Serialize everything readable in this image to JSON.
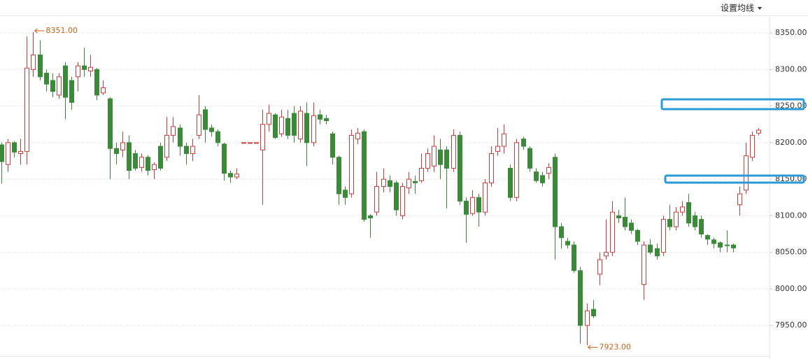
{
  "header": {
    "menu": "设置均线"
  },
  "chart_data": {
    "type": "candlestick",
    "ylim": [
      7909,
      8374
    ],
    "yticks": [
      {
        "value": 7950,
        "label": "7950.00"
      },
      {
        "value": 8000,
        "label": "8000.00"
      },
      {
        "value": 8050,
        "label": "8050.00"
      },
      {
        "value": 8100,
        "label": "8100.00"
      },
      {
        "value": 8150,
        "label": "8150.00"
      },
      {
        "value": 8200,
        "label": "8200.00"
      },
      {
        "value": 8250,
        "label": "8250.00"
      },
      {
        "value": 8300,
        "label": "8300.00"
      },
      {
        "value": 8350,
        "label": "8350.00"
      }
    ],
    "grid": true,
    "up_color": "#c83c3c",
    "down_color": "#3a8a3a",
    "max_label": "8351.00",
    "min_label": "7923.00",
    "open": [
      8197,
      8170,
      8200,
      8185,
      8188,
      8300,
      8320,
      8295,
      8285,
      8265,
      8305,
      8285,
      8290,
      8305,
      8298,
      8300,
      8268,
      8260,
      8192,
      8190,
      8200,
      8185,
      8166,
      8180,
      8163,
      8195,
      8180,
      8210,
      8220,
      8195,
      8185,
      8210,
      8245,
      8220,
      8215,
      8198,
      8158,
      8153,
      8200,
      8200,
      8200,
      8190,
      8225,
      8238,
      8212,
      8233,
      8240,
      8205,
      8240,
      8200,
      8238,
      8233,
      8212,
      8180,
      8135,
      8130,
      8205,
      8215,
      8100,
      8105,
      8140,
      8148,
      8145,
      8100,
      8138,
      8147,
      8148,
      8165,
      8168,
      8190,
      8190,
      8165,
      8210,
      8120,
      8103,
      8125,
      8105,
      8145,
      8188,
      8195,
      8165,
      8125,
      8205,
      8192,
      8160,
      8155,
      8158,
      8180,
      8085,
      8065,
      8060,
      8025,
      7950,
      7972,
      8020,
      8045,
      8050,
      8100,
      8098,
      8090,
      8080,
      8006,
      8060,
      8055,
      8050,
      8095,
      8085,
      8105,
      8118,
      8100,
      8095,
      8073,
      8067,
      8063,
      8060,
      8060,
      8115,
      8135,
      8180,
      8213
    ],
    "high": [
      8200,
      8205,
      8202,
      8205,
      8345,
      8351,
      8340,
      8300,
      8295,
      8295,
      8310,
      8290,
      8310,
      8330,
      8320,
      8302,
      8285,
      8262,
      8200,
      8215,
      8210,
      8190,
      8185,
      8183,
      8173,
      8200,
      8235,
      8235,
      8225,
      8200,
      8205,
      8265,
      8250,
      8225,
      8218,
      8200,
      8162,
      8165,
      8200,
      8200,
      8200,
      8245,
      8252,
      8240,
      8245,
      8245,
      8250,
      8250,
      8255,
      8255,
      8245,
      8238,
      8215,
      8182,
      8140,
      8218,
      8220,
      8218,
      8102,
      8160,
      8165,
      8155,
      8148,
      8145,
      8160,
      8155,
      8185,
      8192,
      8210,
      8205,
      8195,
      8218,
      8215,
      8125,
      8135,
      8130,
      8150,
      8195,
      8220,
      8225,
      8170,
      8205,
      8208,
      8195,
      8165,
      8160,
      8172,
      8185,
      8090,
      8070,
      8065,
      8030,
      7980,
      7985,
      8050,
      8095,
      8120,
      8108,
      8125,
      8095,
      8082,
      8065,
      8068,
      8062,
      8100,
      8115,
      8112,
      8120,
      8130,
      8105,
      8100,
      8075,
      8070,
      8065,
      8080,
      8062,
      8140,
      8200,
      8215,
      8220
    ],
    "low": [
      8144,
      8160,
      8180,
      8170,
      8170,
      8290,
      8285,
      8270,
      8262,
      8260,
      8232,
      8245,
      8270,
      8290,
      8290,
      8258,
      8265,
      8150,
      8170,
      8180,
      8150,
      8162,
      8160,
      8155,
      8150,
      8162,
      8175,
      8200,
      8182,
      8170,
      8175,
      8205,
      8200,
      8208,
      8195,
      8148,
      8145,
      8150,
      8200,
      8200,
      8200,
      8115,
      8215,
      8205,
      8208,
      8205,
      8200,
      8200,
      8168,
      8195,
      8225,
      8225,
      8170,
      8115,
      8115,
      8125,
      8198,
      8092,
      8070,
      8100,
      8132,
      8132,
      8100,
      8095,
      8130,
      8130,
      8145,
      8160,
      8160,
      8150,
      8110,
      8160,
      8115,
      8063,
      8100,
      8085,
      8100,
      8140,
      8182,
      8185,
      8120,
      8120,
      8190,
      8160,
      8145,
      8140,
      8150,
      8040,
      8055,
      8055,
      8022,
      7925,
      7923,
      7960,
      8005,
      8040,
      8045,
      8090,
      8080,
      8075,
      8060,
      7985,
      8047,
      8040,
      8045,
      8080,
      8080,
      8100,
      8085,
      8080,
      8070,
      8060,
      8055,
      8050,
      8050,
      8050,
      8100,
      8130,
      8175,
      8210
    ],
    "close": [
      8174,
      8200,
      8187,
      8188,
      8302,
      8320,
      8290,
      8280,
      8270,
      8290,
      8262,
      8255,
      8305,
      8300,
      8303,
      8265,
      8275,
      8192,
      8185,
      8200,
      8162,
      8165,
      8180,
      8162,
      8170,
      8165,
      8210,
      8222,
      8195,
      8185,
      8195,
      8238,
      8218,
      8215,
      8200,
      8158,
      8153,
      8157,
      8200,
      8200,
      8200,
      8225,
      8240,
      8207,
      8235,
      8210,
      8210,
      8243,
      8200,
      8237,
      8232,
      8230,
      8180,
      8130,
      8125,
      8210,
      8213,
      8095,
      8097,
      8140,
      8150,
      8140,
      8108,
      8140,
      8150,
      8145,
      8165,
      8185,
      8195,
      8170,
      8165,
      8210,
      8120,
      8102,
      8125,
      8105,
      8145,
      8185,
      8195,
      8212,
      8125,
      8200,
      8195,
      8165,
      8148,
      8145,
      8166,
      8085,
      8070,
      8060,
      8025,
      7950,
      7970,
      7963,
      8040,
      8050,
      8105,
      8097,
      8085,
      8080,
      8065,
      8060,
      8050,
      8045,
      8095,
      8085,
      8105,
      8112,
      8090,
      8085,
      8075,
      8068,
      8062,
      8057,
      8059,
      8056,
      8130,
      8182,
      8210,
      8217
    ]
  }
}
